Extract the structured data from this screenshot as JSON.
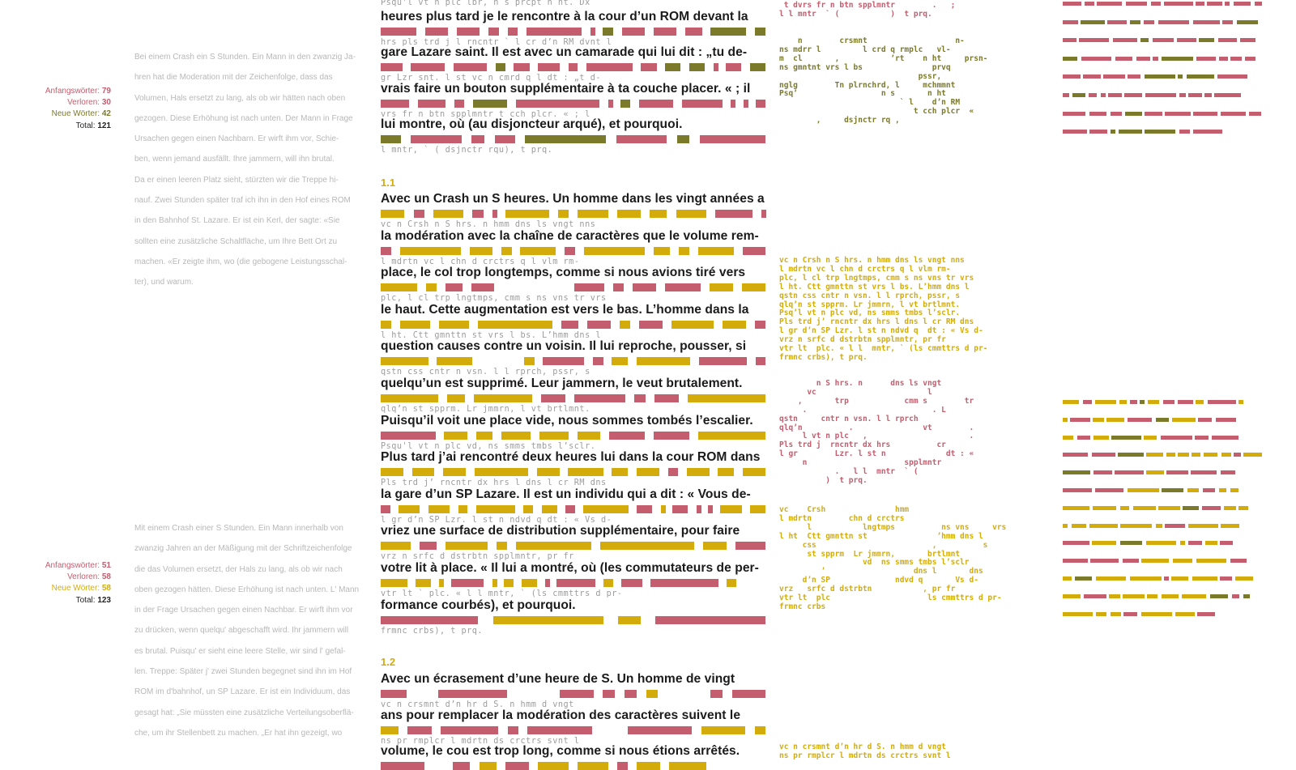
{
  "colors": {
    "red": "#c45d6e",
    "olive": "#7b7a2a",
    "yellow": "#d3ac0c",
    "dark": "#222222"
  },
  "stats": [
    {
      "anfang_label": "Anfangswörter:",
      "anfang_value": "79",
      "verloren_label": "Verloren:",
      "verloren_value": "30",
      "neue_label": "Neue Wörter:",
      "neue_value": "42",
      "total_label": "Total:",
      "total_value": "121"
    },
    {
      "anfang_label": "Anfangswörter:",
      "anfang_value": "51",
      "verloren_label": "Verloren:",
      "verloren_value": "58",
      "neue_label": "Neue Wörter:",
      "neue_value": "58",
      "total_label": "Total:",
      "total_value": "123"
    }
  ],
  "german_blocks": [
    [
      "Bei einem Crash ein S Stunden. Ein Mann in den zwanzig Ja-",
      "hren hat die Moderation mit der Zeichenfolge, dass das",
      "Volumen, Hals ersetzt zu lang, als ob wir hätten nach oben",
      "gezogen. Diese Erhöhung ist nach unten. Der Mann in Frage",
      "Ursachen gegen einen Nachbarn. Er wirft ihm vor, Schie-",
      "ben, wenn jemand ausfällt. Ihre jammern, will ihn brutal.",
      "Da er einen leeren Platz sieht, stürzten wir die Treppe hi-",
      "nauf. Zwei Stunden später traf ich ihn in den Hof eines ROM",
      "in den Bahnhof St. Lazare. Er ist ein Kerl, der sagte: «Sie",
      "sollten eine zusätzliche Schaltfläche, um Ihre Bett Ort zu",
      "machen. «Er zeigte ihm, wo (die gebogene Leistungsschal-",
      "ter), und warum."
    ],
    [
      "Mit einem Crash einer S Stunden. Ein Mann innerhalb von",
      "zwanzig Jahren an der Mäßigung mit der Schriftzeichenfolge",
      "die das Volumen ersetzt, der Hals zu lang, als ob wir nach",
      "oben gezogen hätten. Diese Erhöhung ist nach unten. L' Mann",
      "in der Frage Ursachen gegen einen Nachbar. Er wirft ihm vor",
      "zu drücken, wenn quelqu' abgeschafft wird. Ihr jammern will",
      "es brutal. Puisqu' er sieht eine leere Stelle, wir sind l' gefal-",
      "len. Treppe: Später j' zwei Stunden begegnet sind ihn im Hof",
      "ROM im d'bahnhof, un SP Lazare. Er ist ein Individuum, das",
      "gesagt hat: „Sie müssten eine zusätzliche Verteilungsoberflä-",
      "che, um ihr Stellenbett zu machen. „Er hat ihn gezeigt, wo"
    ]
  ],
  "top_abbr": "Psqu'l vt n plc lbr, n s prcpt n ht. Dx",
  "section0": [
    {
      "text": "heures plus tard je le rencontre à la cour d’un ROM devant la",
      "abbr": "hrs pls trd j l rncntr ` l cr d’n RM dvnt l"
    },
    {
      "text": "gare Lazare saint. Il est avec un camarade qui lui dit : „tu de-",
      "abbr": "gr Lzr snt. l st vc n cmrd q l dt : „t d-"
    },
    {
      "text": "vrais faire un bouton supplémentaire à ta couche placer. « ; il",
      "abbr": "vrs fr n btn spplmntr  t cch plcr. « ; l"
    },
    {
      "text": "lui montre, où (au disjoncteur arqué), et pourquoi.",
      "abbr": "l mntr, ` ( dsjnctr rqu), t prq."
    }
  ],
  "section1_title": "1.1",
  "section1": [
    {
      "text": "Avec un Crash un S heures. Un homme dans les vingt années a",
      "abbr": "vc n Crsh n S hrs. n hmm dns ls vngt nns"
    },
    {
      "text": "la modération avec la chaîne de caractères que le volume rem-",
      "abbr": "l mdrtn vc l chn d crctrs q l vlm rm-"
    },
    {
      "text": "place, le col trop longtemps, comme si nous avions tiré vers",
      "abbr": "plc, l cl trp lngtmps, cmm s ns vns tr vrs"
    },
    {
      "text": "le haut. Cette augmentation est vers le bas. L’homme dans la",
      "abbr": "l ht. Ctt gmnttn st vrs l bs. L’hmm dns l"
    },
    {
      "text": "question causes contre un voisin. Il lui reproche, pousser, si",
      "abbr": "qstn css cntr n vsn. l l rprch, pssr, s"
    },
    {
      "text": "quelqu’un est supprimé. Leur jammern, le veut brutalement.",
      "abbr": "qlq’n st spprm. Lr jmmrn, l vt brtlmnt."
    },
    {
      "text": "Puisqu’il voit une place vide, nous sommes tombés l’escalier.",
      "abbr": "Psqu'l vt n plc vd, ns smms tmbs l’sclr."
    },
    {
      "text": "Plus tard j’ai rencontré deux heures lui dans la cour ROM dans",
      "abbr": "Pls trd j’ rncntr dx hrs l dns l cr RM dns"
    },
    {
      "text": "la gare d’un SP Lazare. Il est un individu qui a dit : « Vous de-",
      "abbr": "l gr d’n SP Lzr. l st n ndvd q  dt : « Vs d-"
    },
    {
      "text": "vriez une surface de distribution supplémentaire, pour faire",
      "abbr": "vrz n srfc d dstrbtn spplmntr, pr fr"
    },
    {
      "text": "votre lit à place. « Il lui a montré, où (les commutateurs de per-",
      "abbr": "vtr lt ` plc. « l l  mntr, ` (ls cmmttrs d pr-"
    },
    {
      "text": "formance courbés), et pourquoi.",
      "abbr": "frmnc crbs), t prq."
    }
  ],
  "section2_title": "1.2",
  "section2": [
    {
      "text": "Avec un écrasement d’une heure de S. Un homme de vingt",
      "abbr": "vc n crsmnt d’n hr d S. n hmm d vngt"
    },
    {
      "text": "ans pour remplacer la modération des caractères suivent le",
      "abbr": "ns pr rmplcr l mdrtn ds crctrs svnt l"
    },
    {
      "text": "volume, le cou est trop long, comme si nous étions arrêtés.",
      "abbr": ""
    }
  ],
  "mono_blocks": [
    {
      "color": "red",
      "lines": [
        " t dvrs fr n btn spplmntr        .   ;",
        "l l mntr  ` (           )  t prq."
      ]
    },
    {
      "color": "olive",
      "lines": [
        "    n        crsmnt                   n-",
        "ns mdrr l         l crd q rmplc   vl-",
        "m  cl       ,           ’rt    n ht     prsn-",
        "ns gmntnt vrs l bs               prvq",
        "                              pssr,",
        "nglg        Tn plrnchrd, l     mchmmnt",
        "Psq’                  n s       n ht",
        "                          ` l    d’n RM",
        "",
        "                             t cch plcr  «",
        "        ,     dsjnctr rq ,"
      ]
    },
    {
      "color": "yellow",
      "lines": [
        "vc n Crsh n S hrs. n hmm dns ls vngt nns",
        "l mdrtn vc l chn d crctrs q l vlm rm-",
        "plc, l cl trp lngtmps, cmm s ns vns tr vrs",
        "l ht. Ctt gmnttn st vrs l bs. L’hmm dns l",
        "qstn css cntr n vsn. l l rprch, pssr, s",
        "qlq’n st spprm. Lr jmmrn, l vt brtlmnt.",
        "Psq’l vt n plc vd, ns smms tmbs l’sclr.",
        "Pls trd j’ rncntr dx hrs l dns l cr RM dns",
        "l gr d’n SP Lzr. l st n ndvd q  dt : « Vs d-",
        "vrz n srfc d dstrbtn spplmntr, pr fr",
        "vtr lt  plc. « l l  mntr, ` (ls cmmttrs d pr-",
        "frmnc crbs), t prq."
      ]
    },
    {
      "color": "red",
      "lines": [
        "        n S hrs. n      dns ls vngt",
        "      vc                        l",
        "    ,       trp            cmm s        tr",
        "     .                           . L",
        "qstn     cntr n vsn. l l rprch",
        "qlq’n          .               vt        .",
        "     l vt n plc   ,                      .",
        "Pls trd j  rncntr dx hrs          cr",
        "l gr        Lzr. l st n             dt : «",
        "     n                     spplmntr",
        "            .   l l  mntr  ` (",
        "          )  t prq."
      ]
    },
    {
      "color": "yellow",
      "lines": [
        "vc    Crsh               hmm",
        "l mdrtn        chn d crctrs",
        "      l           lngtmps          ns vns     vrs",
        "l ht  Ctt gmnttn st               ’hmm dns l",
        "     css                         ,          s",
        "      st spprm  Lr jmmrn,       brtlmnt",
        "                  vd  ns smms tmbs l’sclr",
        "         ’                   dns l       dns",
        "     d’n SP              ndvd q       Vs d-",
        "vrz   srfc d dstrbtn           , pr fr",
        "vtr lt  plc                     ls cmmttrs d pr-",
        "frmnc crbs"
      ]
    },
    {
      "color": "yellow",
      "lines": [
        "vc n crsmnt d’n hr d S. n hmm d vngt",
        "ns pr rmplcr l mdrtn ds crctrs svnt l"
      ]
    }
  ]
}
